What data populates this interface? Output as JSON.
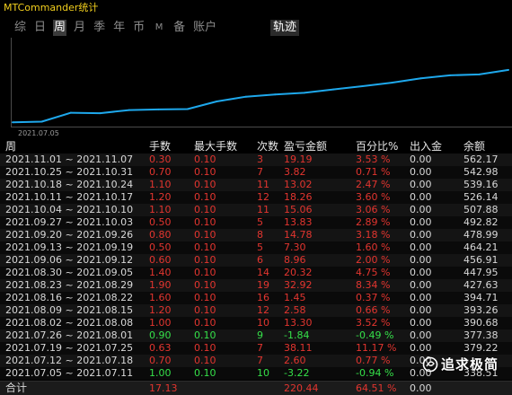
{
  "window": {
    "title": "MTCommander统计"
  },
  "tabs": {
    "items": [
      {
        "label": "综"
      },
      {
        "label": "日"
      },
      {
        "label": "周",
        "active": true
      },
      {
        "label": "月"
      },
      {
        "label": "季"
      },
      {
        "label": "年"
      },
      {
        "label": "币"
      },
      {
        "label": "M"
      },
      {
        "label": "备"
      },
      {
        "label": "账户"
      }
    ],
    "track_tab": {
      "label": "轨迹",
      "active": true
    }
  },
  "colors": {
    "title": "#f2cf1d",
    "profit": "#e3352f",
    "loss": "#35e049",
    "line": "#1ea8ec"
  },
  "chart_data": {
    "type": "line",
    "x": [
      "2021.07.05",
      "2021.07.12",
      "2021.07.19",
      "2021.07.26",
      "2021.08.02",
      "2021.08.09",
      "2021.08.16",
      "2021.08.23",
      "2021.08.30",
      "2021.09.06",
      "2021.09.13",
      "2021.09.20",
      "2021.09.27",
      "2021.10.04",
      "2021.10.11",
      "2021.10.18",
      "2021.10.25",
      "2021.11.01"
    ],
    "y": [
      338.51,
      341.11,
      379.22,
      377.38,
      390.68,
      393.26,
      394.71,
      427.63,
      447.95,
      456.91,
      464.21,
      478.99,
      492.82,
      507.88,
      526.14,
      539.16,
      542.98,
      562.17
    ],
    "x_tick_labels": [
      "2021.07.05"
    ],
    "ylim": [
      320,
      700
    ],
    "grid": false
  },
  "table": {
    "headers": [
      "周",
      "手数",
      "最大手数",
      "次数",
      "盈亏金额",
      "百分比%",
      "出入金",
      "余额"
    ],
    "rows": [
      {
        "week": "2021.11.01 ~ 2021.11.07",
        "lots": "0.30",
        "max_lots": "0.10",
        "count": "3",
        "pnl": "19.19",
        "pct": "3.53 %",
        "io": "0.00",
        "balance": "562.17"
      },
      {
        "week": "2021.10.25 ~ 2021.10.31",
        "lots": "0.70",
        "max_lots": "0.10",
        "count": "7",
        "pnl": "3.82",
        "pct": "0.71 %",
        "io": "0.00",
        "balance": "542.98"
      },
      {
        "week": "2021.10.18 ~ 2021.10.24",
        "lots": "1.10",
        "max_lots": "0.10",
        "count": "11",
        "pnl": "13.02",
        "pct": "2.47 %",
        "io": "0.00",
        "balance": "539.16"
      },
      {
        "week": "2021.10.11 ~ 2021.10.17",
        "lots": "1.20",
        "max_lots": "0.10",
        "count": "12",
        "pnl": "18.26",
        "pct": "3.60 %",
        "io": "0.00",
        "balance": "526.14"
      },
      {
        "week": "2021.10.04 ~ 2021.10.10",
        "lots": "1.10",
        "max_lots": "0.10",
        "count": "11",
        "pnl": "15.06",
        "pct": "3.06 %",
        "io": "0.00",
        "balance": "507.88"
      },
      {
        "week": "2021.09.27 ~ 2021.10.03",
        "lots": "0.50",
        "max_lots": "0.10",
        "count": "5",
        "pnl": "13.83",
        "pct": "2.89 %",
        "io": "0.00",
        "balance": "492.82"
      },
      {
        "week": "2021.09.20 ~ 2021.09.26",
        "lots": "0.80",
        "max_lots": "0.10",
        "count": "8",
        "pnl": "14.78",
        "pct": "3.18 %",
        "io": "0.00",
        "balance": "478.99"
      },
      {
        "week": "2021.09.13 ~ 2021.09.19",
        "lots": "0.50",
        "max_lots": "0.10",
        "count": "5",
        "pnl": "7.30",
        "pct": "1.60 %",
        "io": "0.00",
        "balance": "464.21"
      },
      {
        "week": "2021.09.06 ~ 2021.09.12",
        "lots": "0.60",
        "max_lots": "0.10",
        "count": "6",
        "pnl": "8.96",
        "pct": "2.00 %",
        "io": "0.00",
        "balance": "456.91"
      },
      {
        "week": "2021.08.30 ~ 2021.09.05",
        "lots": "1.40",
        "max_lots": "0.10",
        "count": "14",
        "pnl": "20.32",
        "pct": "4.75 %",
        "io": "0.00",
        "balance": "447.95"
      },
      {
        "week": "2021.08.23 ~ 2021.08.29",
        "lots": "1.90",
        "max_lots": "0.10",
        "count": "19",
        "pnl": "32.92",
        "pct": "8.34 %",
        "io": "0.00",
        "balance": "427.63"
      },
      {
        "week": "2021.08.16 ~ 2021.08.22",
        "lots": "1.60",
        "max_lots": "0.10",
        "count": "16",
        "pnl": "1.45",
        "pct": "0.37 %",
        "io": "0.00",
        "balance": "394.71"
      },
      {
        "week": "2021.08.09 ~ 2021.08.15",
        "lots": "1.20",
        "max_lots": "0.10",
        "count": "12",
        "pnl": "2.58",
        "pct": "0.66 %",
        "io": "0.00",
        "balance": "393.26"
      },
      {
        "week": "2021.08.02 ~ 2021.08.08",
        "lots": "1.00",
        "max_lots": "0.10",
        "count": "10",
        "pnl": "13.30",
        "pct": "3.52 %",
        "io": "0.00",
        "balance": "390.68"
      },
      {
        "week": "2021.07.26 ~ 2021.08.01",
        "lots": "0.90",
        "max_lots": "0.10",
        "count": "9",
        "pnl": "-1.84",
        "pct": "-0.49 %",
        "io": "0.00",
        "balance": "377.38"
      },
      {
        "week": "2021.07.19 ~ 2021.07.25",
        "lots": "0.63",
        "max_lots": "0.10",
        "count": "7",
        "pnl": "38.11",
        "pct": "11.17 %",
        "io": "0.00",
        "balance": "379.22"
      },
      {
        "week": "2021.07.12 ~ 2021.07.18",
        "lots": "0.70",
        "max_lots": "0.10",
        "count": "7",
        "pnl": "2.60",
        "pct": "0.77 %",
        "io": "0.00"
      },
      {
        "week": "2021.07.05 ~ 2021.07.11",
        "lots": "1.00",
        "max_lots": "0.10",
        "count": "10",
        "pnl": "-3.22",
        "pct": "-0.94 %",
        "io": "0.00",
        "balance": "338.51"
      }
    ],
    "footer": {
      "label": "合计",
      "lots": "17.13",
      "pnl": "220.44",
      "pct": "64.51 %",
      "io": "0.00"
    }
  },
  "watermark": {
    "text": "追求极简"
  }
}
